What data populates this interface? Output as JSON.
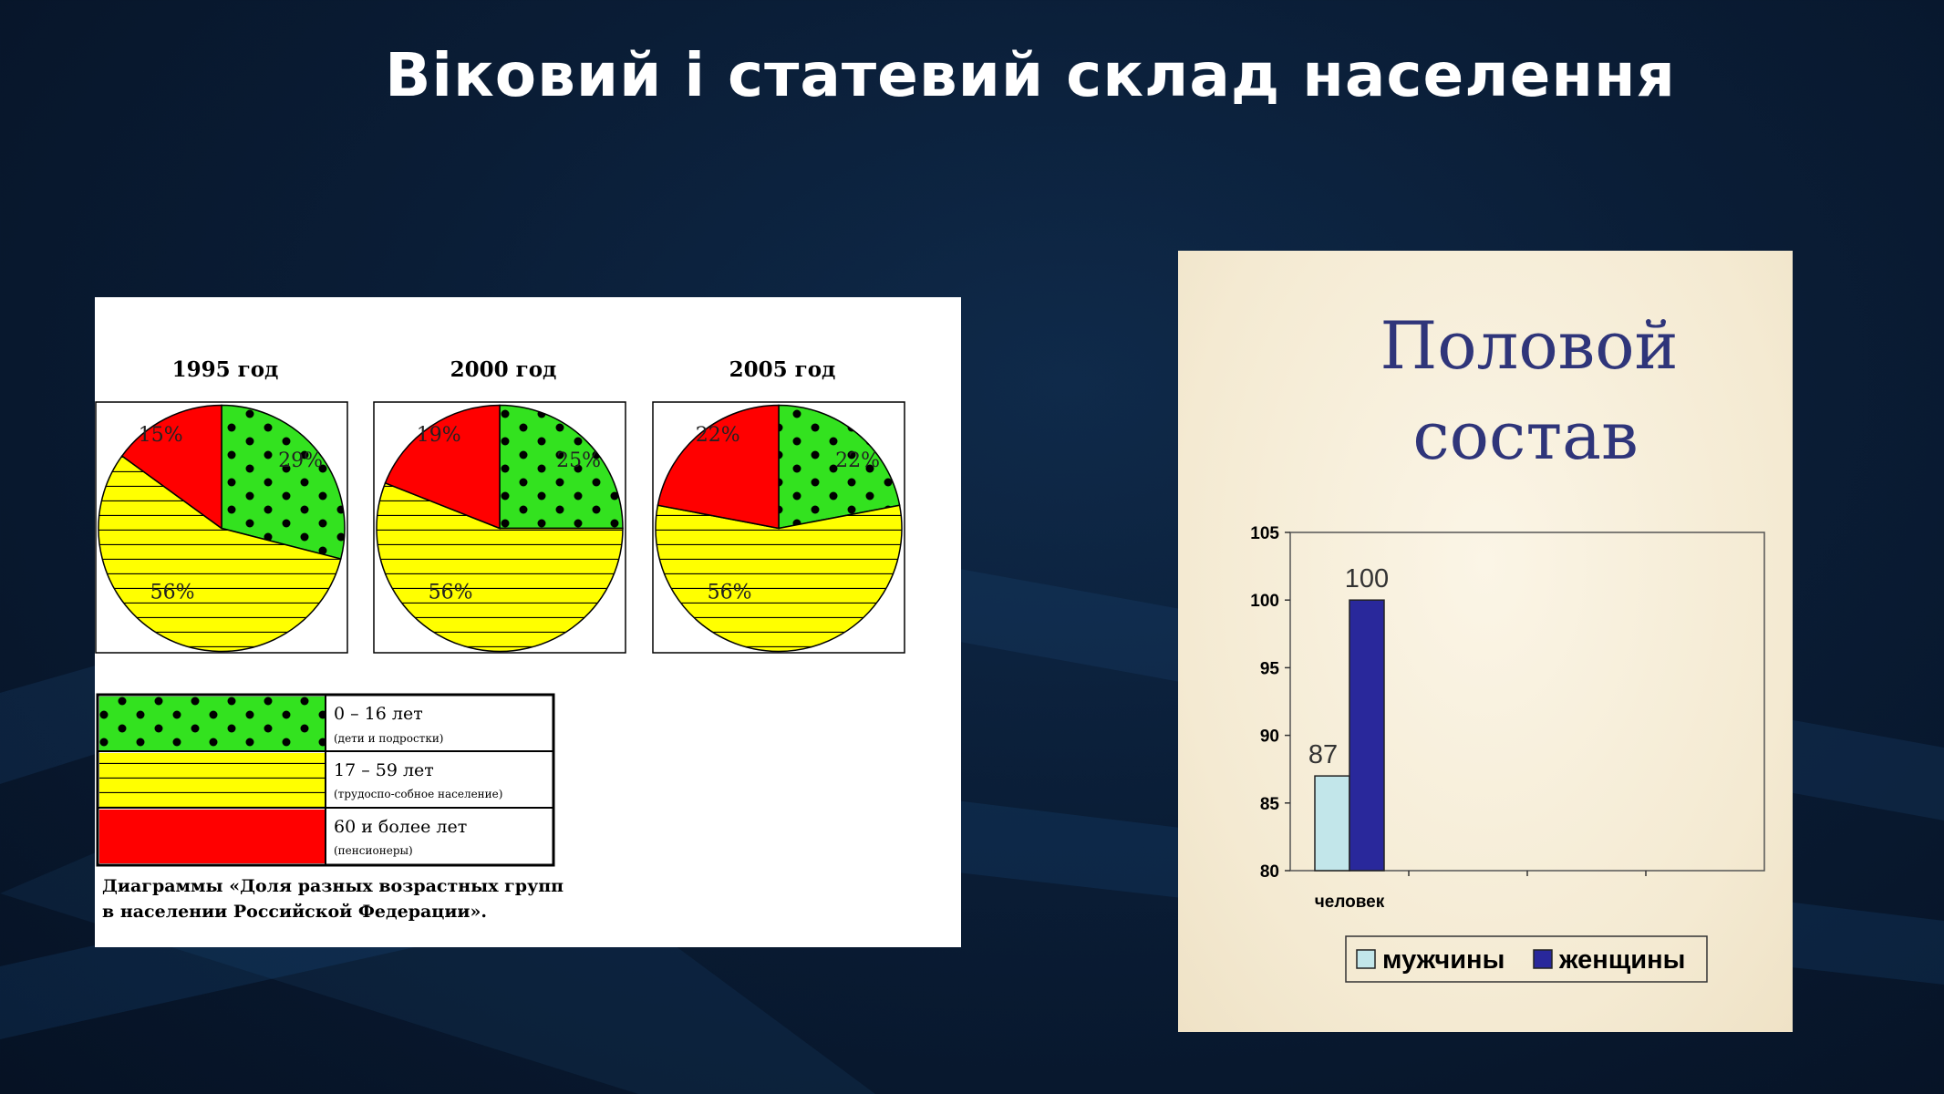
{
  "title": "Віковий і статевий склад населення",
  "colors": {
    "group_0_16": "#33e21f",
    "group_17_59": "#ffff00",
    "group_60_plus": "#ff0000",
    "men": "#c2e6ea",
    "women": "#29289b",
    "sex_title": "#2f357a"
  },
  "age_panel": {
    "legend": [
      {
        "label": "0 – 16 лет",
        "note": "(дети и подростки)"
      },
      {
        "label": "17 – 59 лет",
        "note": "(трудоспо-собное население)"
      },
      {
        "label": "60 и более лет",
        "note": "(пенсионеры)"
      }
    ],
    "caption": "Диаграммы «Доля разных возрастных групп в населении Российской Федерации»."
  },
  "sex_panel": {
    "title_line1": "Половой",
    "title_line2": "состав"
  },
  "chart_data": [
    {
      "type": "pie",
      "title": "1995 год",
      "labels": [
        "0 – 16 лет",
        "17 – 59 лет",
        "60 и более лет"
      ],
      "values": [
        29,
        56,
        15
      ],
      "value_labels": [
        "29%",
        "56%",
        "15%"
      ]
    },
    {
      "type": "pie",
      "title": "2000 год",
      "labels": [
        "0 – 16 лет",
        "17 – 59 лет",
        "60 и более лет"
      ],
      "values": [
        25,
        56,
        19
      ],
      "value_labels": [
        "25%",
        "56%",
        "19%"
      ]
    },
    {
      "type": "pie",
      "title": "2005 год",
      "labels": [
        "0 – 16 лет",
        "17 – 59 лет",
        "60 и более лет"
      ],
      "values": [
        22,
        56,
        22
      ],
      "value_labels": [
        "22%",
        "56%",
        "22%"
      ]
    },
    {
      "type": "bar",
      "categories": [
        "человек"
      ],
      "series": [
        {
          "name": "мужчины",
          "values": [
            87
          ]
        },
        {
          "name": "женщины",
          "values": [
            100
          ]
        }
      ],
      "ylim": [
        80,
        105
      ],
      "yticks": [
        80,
        85,
        90,
        95,
        100,
        105
      ],
      "legend": "bottom",
      "grid": false
    }
  ]
}
